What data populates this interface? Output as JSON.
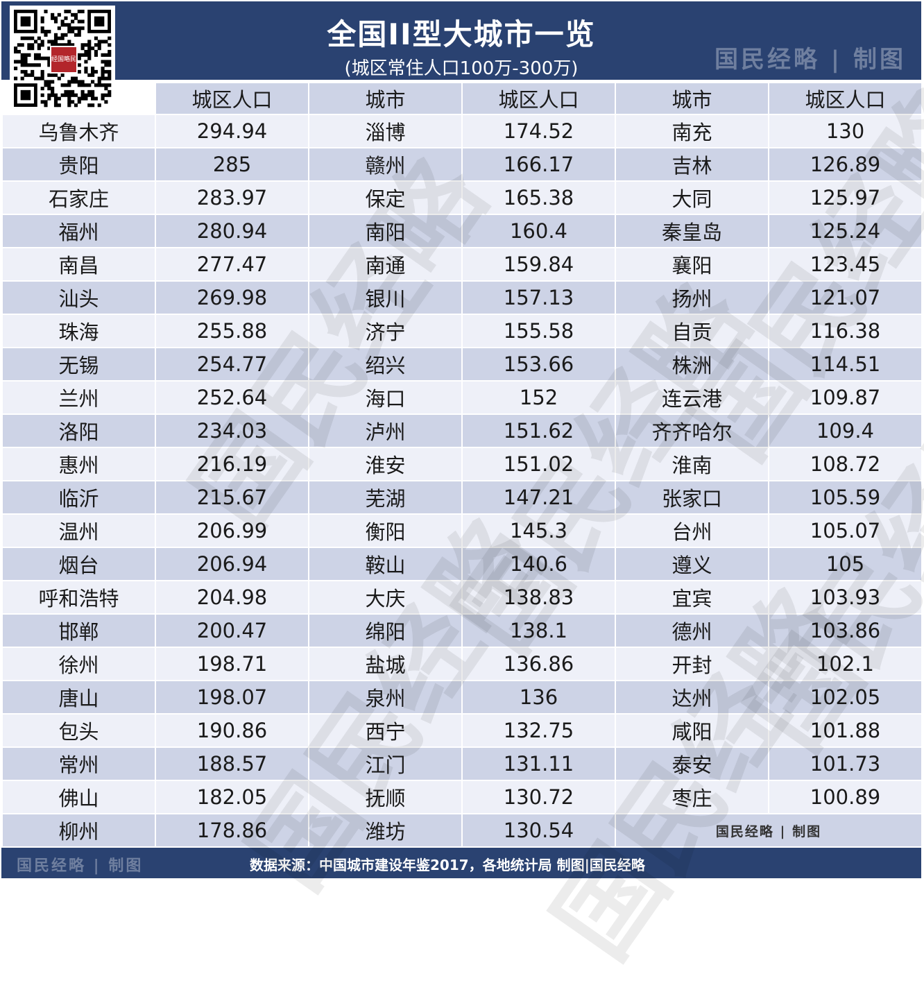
{
  "header": {
    "title": "全国II型大城市一览",
    "subtitle": "(城区常住人口100万-300万)",
    "brand": "国民经略 | 制图"
  },
  "qr": {
    "logo_text": "经国略民"
  },
  "table": {
    "headers": [
      "",
      "城区人口",
      "城市",
      "城区人口",
      "城市",
      "城区人口"
    ],
    "rows": [
      [
        "乌鲁木齐",
        "294.94",
        "淄博",
        "174.52",
        "南充",
        "130"
      ],
      [
        "贵阳",
        "285",
        "赣州",
        "166.17",
        "吉林",
        "126.89"
      ],
      [
        "石家庄",
        "283.97",
        "保定",
        "165.38",
        "大同",
        "125.97"
      ],
      [
        "福州",
        "280.94",
        "南阳",
        "160.4",
        "秦皇岛",
        "125.24"
      ],
      [
        "南昌",
        "277.47",
        "南通",
        "159.84",
        "襄阳",
        "123.45"
      ],
      [
        "汕头",
        "269.98",
        "银川",
        "157.13",
        "扬州",
        "121.07"
      ],
      [
        "珠海",
        "255.88",
        "济宁",
        "155.58",
        "自贡",
        "116.38"
      ],
      [
        "无锡",
        "254.77",
        "绍兴",
        "153.66",
        "株洲",
        "114.51"
      ],
      [
        "兰州",
        "252.64",
        "海口",
        "152",
        "连云港",
        "109.87"
      ],
      [
        "洛阳",
        "234.03",
        "泸州",
        "151.62",
        "齐齐哈尔",
        "109.4"
      ],
      [
        "惠州",
        "216.19",
        "淮安",
        "151.02",
        "淮南",
        "108.72"
      ],
      [
        "临沂",
        "215.67",
        "芜湖",
        "147.21",
        "张家口",
        "105.59"
      ],
      [
        "温州",
        "206.99",
        "衡阳",
        "145.3",
        "台州",
        "105.07"
      ],
      [
        "烟台",
        "206.94",
        "鞍山",
        "140.6",
        "遵义",
        "105"
      ],
      [
        "呼和浩特",
        "204.98",
        "大庆",
        "138.83",
        "宜宾",
        "103.93"
      ],
      [
        "邯郸",
        "200.47",
        "绵阳",
        "138.1",
        "德州",
        "103.86"
      ],
      [
        "徐州",
        "198.71",
        "盐城",
        "136.86",
        "开封",
        "102.1"
      ],
      [
        "唐山",
        "198.07",
        "泉州",
        "136",
        "达州",
        "102.05"
      ],
      [
        "包头",
        "190.86",
        "西宁",
        "132.75",
        "咸阳",
        "101.88"
      ],
      [
        "常州",
        "188.57",
        "江门",
        "131.11",
        "泰安",
        "101.73"
      ],
      [
        "佛山",
        "182.05",
        "抚顺",
        "130.72",
        "枣庄",
        "100.89"
      ]
    ],
    "last_row": [
      "柳州",
      "178.86",
      "潍坊",
      "130.54"
    ],
    "last_row_brand": "国民经略 | 制图"
  },
  "footer": {
    "brand": "国民经略 | 制图",
    "source": "数据来源：中国城市建设年鉴2017，各地统计局  制图|国民经略"
  },
  "watermark": "国民经略"
}
